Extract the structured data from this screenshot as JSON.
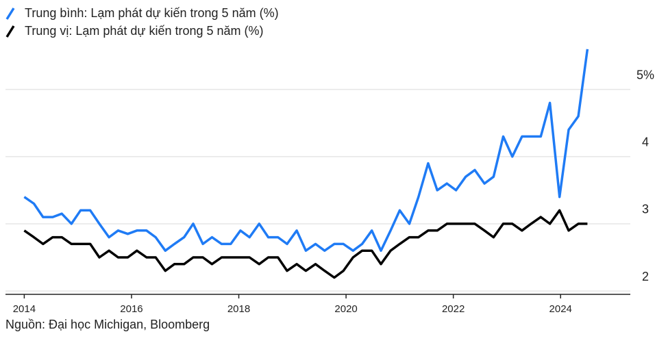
{
  "chart_data": {
    "type": "line",
    "x": [
      2014.0,
      2014.18,
      2014.35,
      2014.53,
      2014.7,
      2014.88,
      2015.05,
      2015.23,
      2015.4,
      2015.58,
      2015.75,
      2015.93,
      2016.1,
      2016.28,
      2016.45,
      2016.63,
      2016.8,
      2016.98,
      2017.15,
      2017.33,
      2017.5,
      2017.68,
      2017.85,
      2018.03,
      2018.2,
      2018.38,
      2018.55,
      2018.73,
      2018.9,
      2019.08,
      2019.25,
      2019.43,
      2019.6,
      2019.78,
      2019.95,
      2020.13,
      2020.3,
      2020.48,
      2020.65,
      2020.83,
      2021.0,
      2021.18,
      2021.35,
      2021.53,
      2021.7,
      2021.88,
      2022.05,
      2022.23,
      2022.4,
      2022.58,
      2022.75,
      2022.93,
      2023.1,
      2023.28,
      2023.45,
      2023.63,
      2023.8,
      2023.98,
      2024.15,
      2024.33,
      2024.5
    ],
    "series": [
      {
        "name": "Trung bình: Lạm phát dự kiến trong 5 năm (%)",
        "color": "#1f7bf5",
        "values": [
          3.4,
          3.3,
          3.1,
          3.1,
          3.15,
          3.0,
          3.2,
          3.2,
          3.0,
          2.8,
          2.9,
          2.85,
          2.9,
          2.9,
          2.8,
          2.6,
          2.7,
          2.8,
          3.0,
          2.7,
          2.8,
          2.7,
          2.7,
          2.9,
          2.8,
          3.0,
          2.8,
          2.8,
          2.7,
          2.9,
          2.6,
          2.7,
          2.6,
          2.7,
          2.7,
          2.6,
          2.7,
          2.9,
          2.6,
          2.9,
          3.2,
          3.0,
          3.4,
          3.9,
          3.5,
          3.6,
          3.5,
          3.7,
          3.8,
          3.6,
          3.7,
          4.3,
          4.0,
          4.3,
          4.3,
          4.3,
          4.8,
          3.4,
          4.4,
          4.6,
          5.6
        ]
      },
      {
        "name": "Trung vị: Lạm phát dự kiến trong 5 năm (%)",
        "color": "#000000",
        "values": [
          2.9,
          2.8,
          2.7,
          2.8,
          2.8,
          2.7,
          2.7,
          2.7,
          2.5,
          2.6,
          2.5,
          2.5,
          2.6,
          2.5,
          2.5,
          2.3,
          2.4,
          2.4,
          2.5,
          2.5,
          2.4,
          2.5,
          2.5,
          2.5,
          2.5,
          2.4,
          2.5,
          2.5,
          2.3,
          2.4,
          2.3,
          2.4,
          2.3,
          2.2,
          2.3,
          2.5,
          2.6,
          2.6,
          2.4,
          2.6,
          2.7,
          2.8,
          2.8,
          2.9,
          2.9,
          3.0,
          3.0,
          3.0,
          3.0,
          2.9,
          2.8,
          3.0,
          3.0,
          2.9,
          3.0,
          3.1,
          3.0,
          3.2,
          2.9,
          3.0,
          3.0
        ]
      }
    ],
    "xlim": [
      2013.65,
      2025.3
    ],
    "xticks": [
      2014,
      2016,
      2018,
      2020,
      2022,
      2024
    ],
    "ylim": [
      1.95,
      5.72
    ],
    "yticks": [
      {
        "value": 5,
        "label": "5%"
      },
      4,
      3,
      2
    ],
    "grid": true,
    "source": "Nguồn: Đại học Michigan, Bloomberg"
  }
}
